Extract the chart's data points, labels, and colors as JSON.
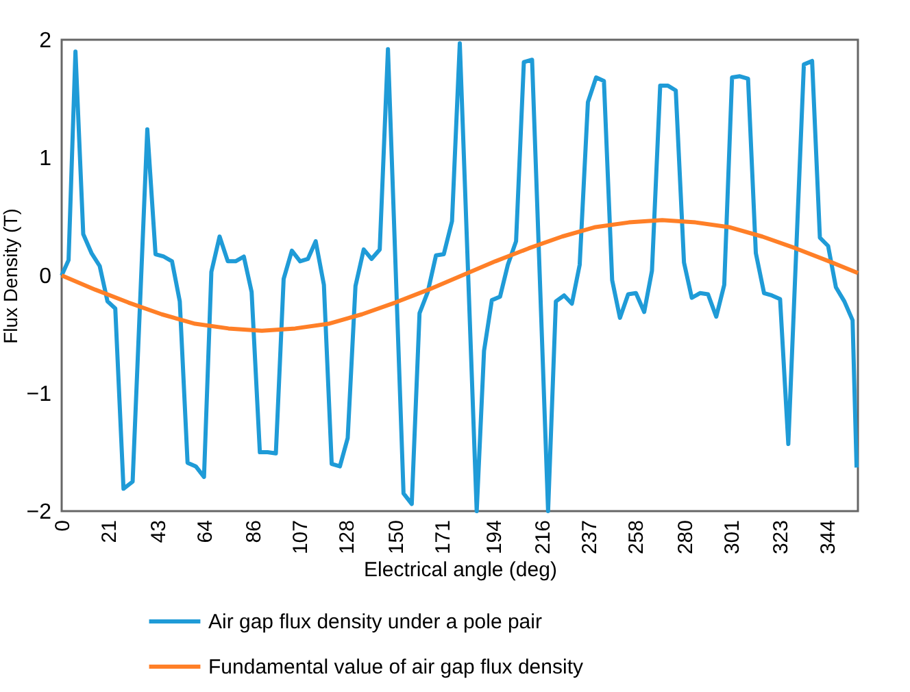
{
  "chart_data": {
    "type": "line",
    "xlabel": "Electrical angle (deg)",
    "ylabel": "Flux Density (T)",
    "xlim": [
      0,
      358
    ],
    "xticks": [
      0,
      21,
      43,
      64,
      86,
      107,
      128,
      150,
      171,
      194,
      216,
      237,
      258,
      280,
      301,
      323,
      344
    ],
    "ylim": [
      -2,
      2
    ],
    "yticks": [
      -2,
      -1,
      0,
      1,
      2
    ],
    "grid": false,
    "legend": "bottom",
    "line_style": "solid",
    "marker": "none",
    "series": [
      {
        "name": "Air gap flux density under a pole pair",
        "color": "#1f9bd7",
        "x": [
          0,
          3.1,
          6.2,
          9.7,
          13.4,
          17.1,
          20.6,
          24.1,
          27.8,
          31.9,
          38.5,
          42.2,
          45.9,
          49.6,
          53.1,
          56.6,
          60.3,
          64,
          67.3,
          71,
          74.7,
          78.2,
          81.9,
          85.4,
          89.1,
          92.6,
          96.3,
          99.8,
          103.5,
          107.2,
          110.7,
          114.2,
          117.9,
          121.4,
          125.1,
          128.6,
          132.1,
          135.8,
          139.3,
          143,
          146.7,
          153.7,
          157.4,
          160.9,
          164.6,
          168.3,
          171.8,
          175.5,
          179,
          186.6,
          189.9,
          193.4,
          197.1,
          200.6,
          204.3,
          207.8,
          211.5,
          218.7,
          222.2,
          225.9,
          229.4,
          232.9,
          236.6,
          240.3,
          243.8,
          247.5,
          251,
          254.7,
          258.2,
          261.9,
          265.4,
          269.1,
          272.6,
          276.1,
          279.8,
          283.3,
          287,
          290.6,
          294.3,
          297.9,
          301.4,
          304.9,
          308.6,
          312.1,
          315.8,
          319.3,
          323,
          326.7,
          333.7,
          337.4,
          340.9,
          344.6,
          348.1,
          351.9,
          355.6,
          357.4
        ],
        "values": [
          0.0,
          0.13,
          1.9,
          0.35,
          0.19,
          0.08,
          -0.22,
          -0.28,
          -1.81,
          -1.75,
          1.24,
          0.18,
          0.16,
          0.12,
          -0.22,
          -1.59,
          -1.62,
          -1.71,
          0.03,
          0.33,
          0.12,
          0.12,
          0.16,
          -0.14,
          -1.5,
          -1.5,
          -1.51,
          -0.03,
          0.21,
          0.12,
          0.14,
          0.29,
          -0.08,
          -1.6,
          -1.62,
          -1.38,
          -0.09,
          0.22,
          0.14,
          0.22,
          1.92,
          -1.85,
          -1.94,
          -0.32,
          -0.14,
          0.17,
          0.18,
          0.46,
          1.97,
          -2.0,
          -0.64,
          -0.21,
          -0.18,
          0.09,
          0.29,
          1.81,
          1.83,
          -2.0,
          -0.22,
          -0.17,
          -0.24,
          0.09,
          1.47,
          1.68,
          1.65,
          -0.04,
          -0.36,
          -0.16,
          -0.15,
          -0.31,
          0.04,
          1.61,
          1.61,
          1.57,
          0.11,
          -0.19,
          -0.15,
          -0.16,
          -0.35,
          -0.08,
          1.68,
          1.69,
          1.67,
          0.19,
          -0.15,
          -0.17,
          -0.2,
          -1.43,
          1.79,
          1.82,
          0.32,
          0.25,
          -0.1,
          -0.22,
          -0.38,
          -1.63
        ]
      },
      {
        "name": "Fundamental value of air gap flux density",
        "color": "#ff7f27",
        "x": [
          0,
          15,
          30,
          45,
          60,
          75,
          90,
          105,
          120,
          135,
          150,
          165,
          180,
          195,
          210,
          225,
          240,
          255,
          270,
          285,
          300,
          315,
          330,
          345,
          358
        ],
        "values": [
          0,
          -0.12,
          -0.23,
          -0.33,
          -0.41,
          -0.45,
          -0.47,
          -0.45,
          -0.41,
          -0.33,
          -0.23,
          -0.12,
          0,
          0.12,
          0.23,
          0.33,
          0.41,
          0.45,
          0.47,
          0.45,
          0.41,
          0.33,
          0.23,
          0.12,
          0.02
        ]
      }
    ]
  }
}
